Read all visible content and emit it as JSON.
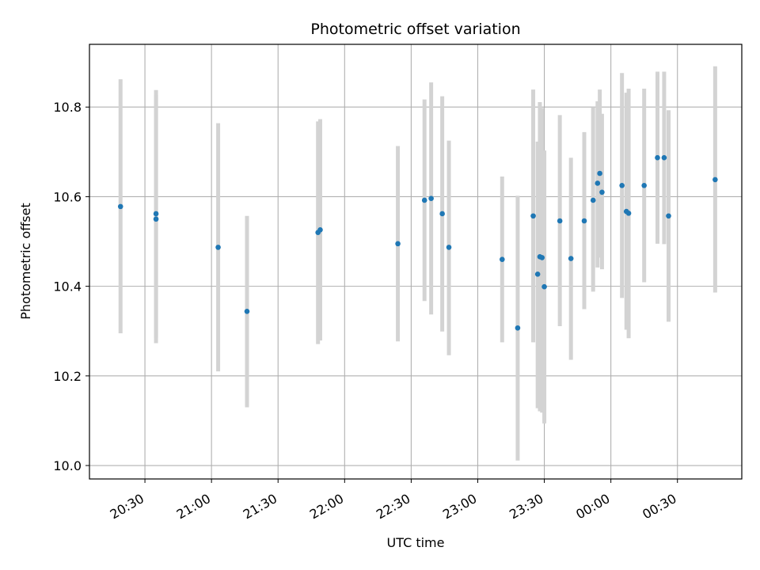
{
  "chart_data": {
    "type": "scatter",
    "title": "Photometric offset variation",
    "xlabel": "UTC time",
    "ylabel": "Photometric offset",
    "x_unit": "UTC time (HH:MM)",
    "xlim": [
      "20:05",
      "00:59"
    ],
    "ylim": [
      9.97,
      10.94
    ],
    "x_ticks": [
      "20:30",
      "21:00",
      "21:30",
      "22:00",
      "22:30",
      "23:00",
      "23:30",
      "00:00",
      "00:30"
    ],
    "y_ticks": [
      10.0,
      10.2,
      10.4,
      10.6,
      10.8
    ],
    "grid": true,
    "point_color": "#1f77b4",
    "errorbar_color": "#d3d3d3",
    "points": [
      {
        "x": "20:19",
        "y": 10.578,
        "lo": 10.295,
        "hi": 10.862
      },
      {
        "x": "20:35",
        "y": 10.562,
        "lo": 10.285,
        "hi": 10.838
      },
      {
        "x": "20:35",
        "y": 10.55,
        "lo": 10.273,
        "hi": 10.827
      },
      {
        "x": "21:03",
        "y": 10.487,
        "lo": 10.21,
        "hi": 10.764
      },
      {
        "x": "21:16",
        "y": 10.344,
        "lo": 10.13,
        "hi": 10.557
      },
      {
        "x": "21:48",
        "y": 10.52,
        "lo": 10.271,
        "hi": 10.768
      },
      {
        "x": "21:49",
        "y": 10.526,
        "lo": 10.279,
        "hi": 10.773
      },
      {
        "x": "22:24",
        "y": 10.495,
        "lo": 10.277,
        "hi": 10.713
      },
      {
        "x": "22:36",
        "y": 10.592,
        "lo": 10.367,
        "hi": 10.817
      },
      {
        "x": "22:39",
        "y": 10.596,
        "lo": 10.337,
        "hi": 10.855
      },
      {
        "x": "22:44",
        "y": 10.562,
        "lo": 10.299,
        "hi": 10.824
      },
      {
        "x": "22:47",
        "y": 10.487,
        "lo": 10.246,
        "hi": 10.725
      },
      {
        "x": "23:11",
        "y": 10.46,
        "lo": 10.275,
        "hi": 10.645
      },
      {
        "x": "23:18",
        "y": 10.307,
        "lo": 10.011,
        "hi": 10.602
      },
      {
        "x": "23:25",
        "y": 10.557,
        "lo": 10.275,
        "hi": 10.839
      },
      {
        "x": "23:27",
        "y": 10.427,
        "lo": 10.128,
        "hi": 10.723
      },
      {
        "x": "23:28",
        "y": 10.466,
        "lo": 10.121,
        "hi": 10.811
      },
      {
        "x": "23:29",
        "y": 10.464,
        "lo": 10.118,
        "hi": 10.798
      },
      {
        "x": "23:30",
        "y": 10.399,
        "lo": 10.094,
        "hi": 10.703
      },
      {
        "x": "23:37",
        "y": 10.546,
        "lo": 10.311,
        "hi": 10.782
      },
      {
        "x": "23:42",
        "y": 10.462,
        "lo": 10.236,
        "hi": 10.687
      },
      {
        "x": "23:48",
        "y": 10.546,
        "lo": 10.349,
        "hi": 10.744
      },
      {
        "x": "23:52",
        "y": 10.592,
        "lo": 10.388,
        "hi": 10.8
      },
      {
        "x": "23:54",
        "y": 10.63,
        "lo": 10.442,
        "hi": 10.813
      },
      {
        "x": "23:55",
        "y": 10.652,
        "lo": 10.464,
        "hi": 10.839
      },
      {
        "x": "23:56",
        "y": 10.61,
        "lo": 10.438,
        "hi": 10.785
      },
      {
        "x": "00:05",
        "y": 10.625,
        "lo": 10.374,
        "hi": 10.876
      },
      {
        "x": "00:07",
        "y": 10.567,
        "lo": 10.303,
        "hi": 10.832
      },
      {
        "x": "00:08",
        "y": 10.563,
        "lo": 10.284,
        "hi": 10.841
      },
      {
        "x": "00:15",
        "y": 10.625,
        "lo": 10.409,
        "hi": 10.841
      },
      {
        "x": "00:21",
        "y": 10.687,
        "lo": 10.495,
        "hi": 10.879
      },
      {
        "x": "00:24",
        "y": 10.687,
        "lo": 10.494,
        "hi": 10.879
      },
      {
        "x": "00:26",
        "y": 10.557,
        "lo": 10.321,
        "hi": 10.793
      },
      {
        "x": "00:47",
        "y": 10.638,
        "lo": 10.386,
        "hi": 10.891
      }
    ]
  }
}
